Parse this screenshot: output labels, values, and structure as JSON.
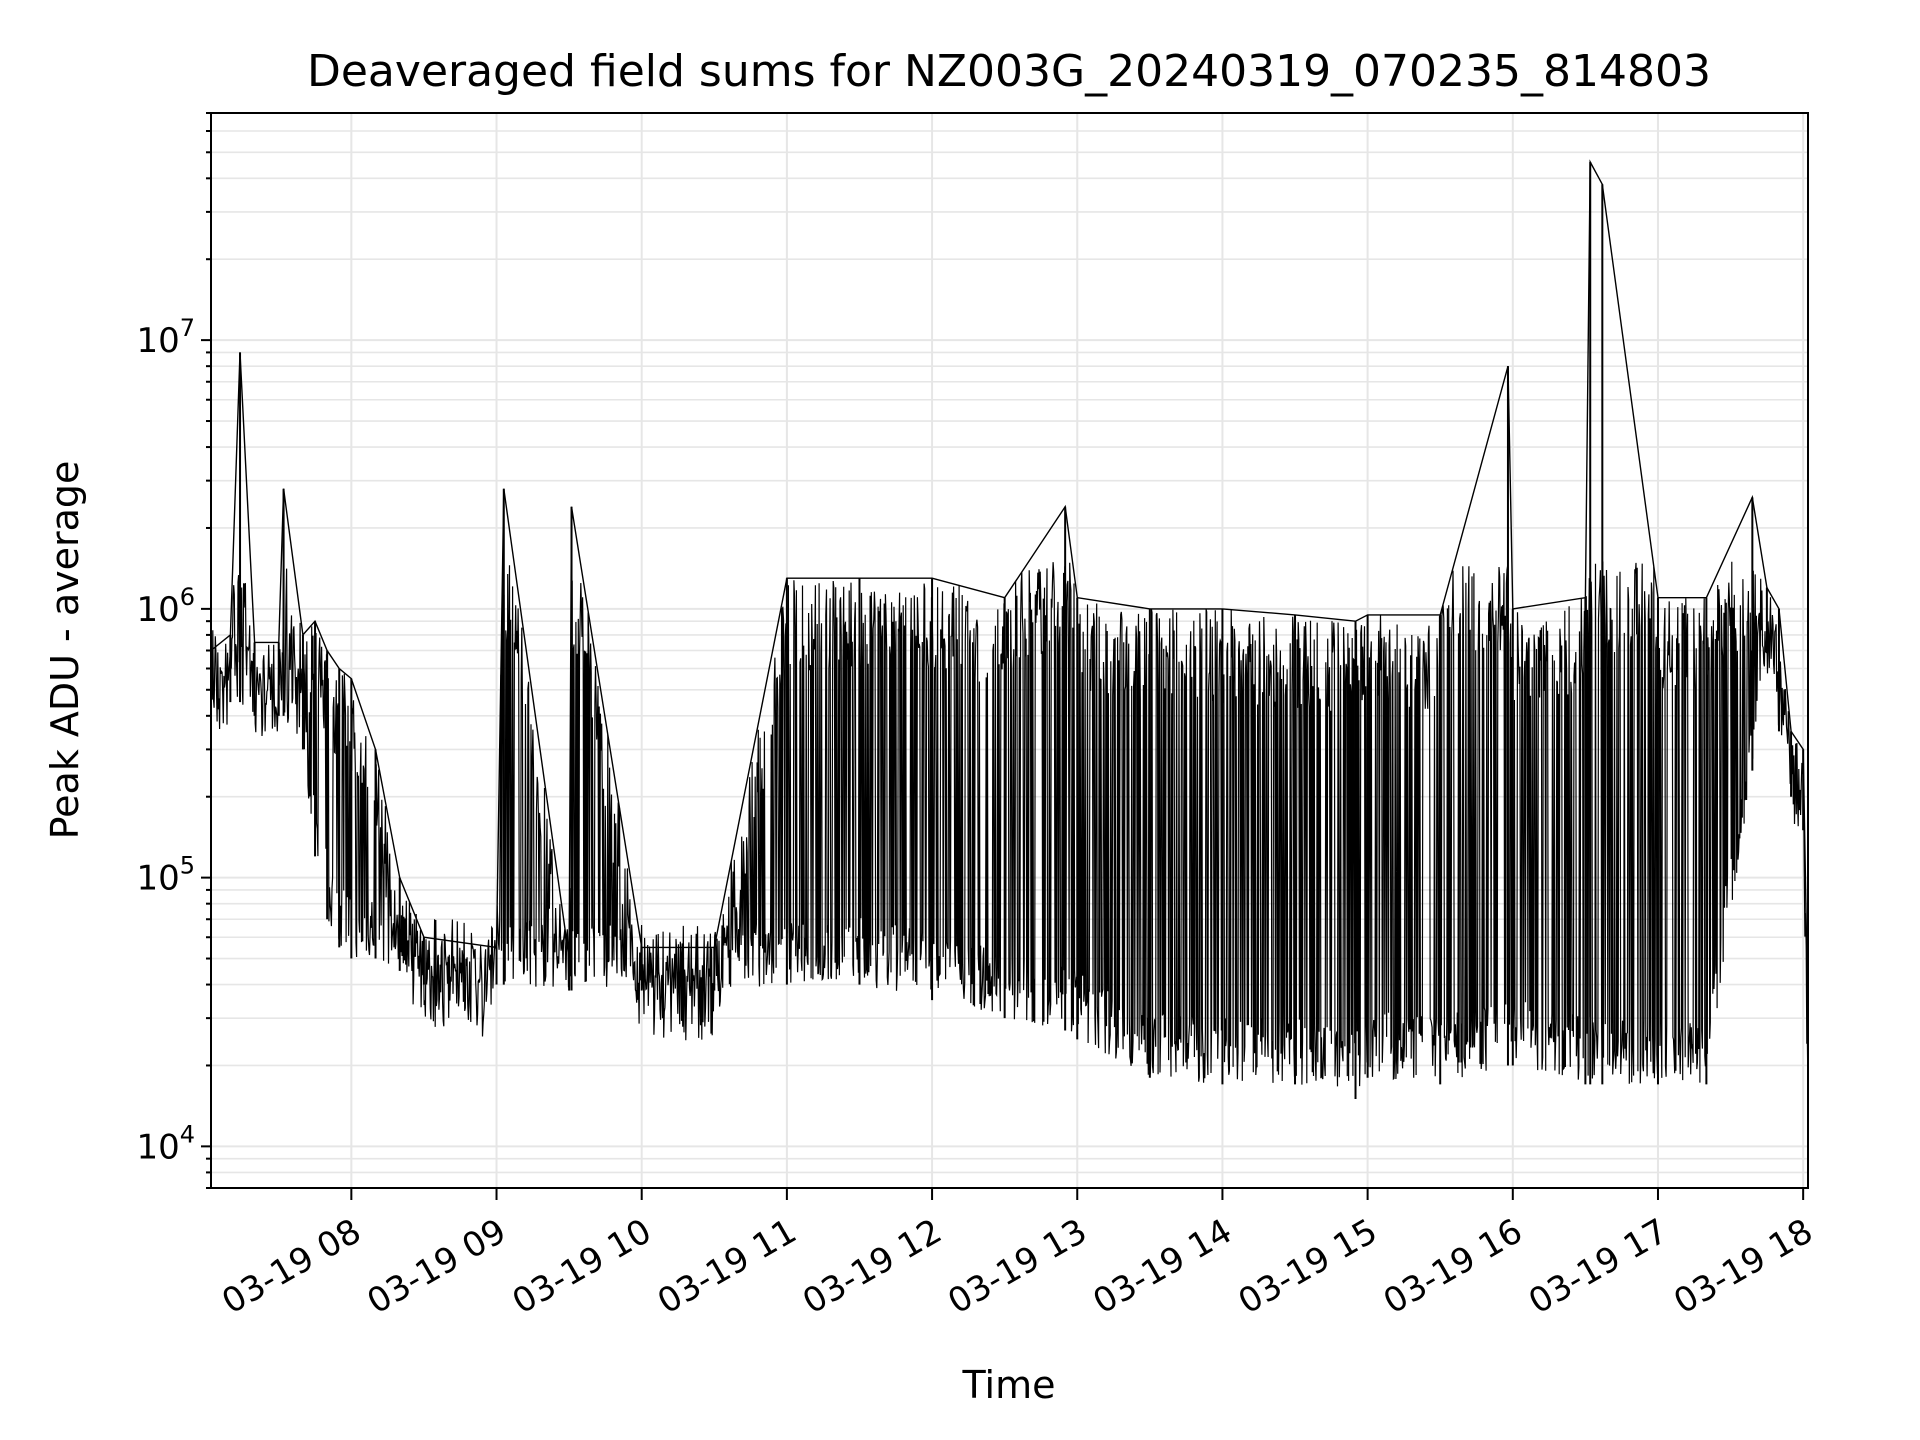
{
  "chart_data": {
    "type": "line",
    "title": "Deaveraged field sums for NZ003G_20240319_070235_814803",
    "xlabel": "Time",
    "ylabel": "Peak ADU - average",
    "yscale": "log",
    "ylim": [
      7000,
      70000000
    ],
    "xlim": [
      "2024-03-19 07:02",
      "2024-03-19 18:02"
    ],
    "grid": true,
    "x_ticks": [
      "03-19 08",
      "03-19 09",
      "03-19 10",
      "03-19 11",
      "03-19 12",
      "03-19 13",
      "03-19 14",
      "03-19 15",
      "03-19 16",
      "03-19 17",
      "03-19 18"
    ],
    "y_ticks": [
      {
        "base": "10",
        "exp": "4",
        "value": 10000
      },
      {
        "base": "10",
        "exp": "5",
        "value": 100000
      },
      {
        "base": "10",
        "exp": "6",
        "value": 1000000
      },
      {
        "base": "10",
        "exp": "7",
        "value": 10000000
      }
    ],
    "line_color": "#000000",
    "series": [
      {
        "x": [
          "2024-03-19 07:02",
          "2024-03-19 07:10",
          "2024-03-19 07:14",
          "2024-03-19 07:20",
          "2024-03-19 07:30",
          "2024-03-19 07:32",
          "2024-03-19 07:40",
          "2024-03-19 07:45",
          "2024-03-19 07:50",
          "2024-03-19 07:55",
          "2024-03-19 08:00",
          "2024-03-19 08:10",
          "2024-03-19 08:20",
          "2024-03-19 08:30",
          "2024-03-19 09:00",
          "2024-03-19 09:03",
          "2024-03-19 09:30",
          "2024-03-19 09:31",
          "2024-03-19 10:00",
          "2024-03-19 10:30",
          "2024-03-19 11:00",
          "2024-03-19 11:30",
          "2024-03-19 12:00",
          "2024-03-19 12:30",
          "2024-03-19 12:55",
          "2024-03-19 13:00",
          "2024-03-19 13:30",
          "2024-03-19 14:00",
          "2024-03-19 14:30",
          "2024-03-19 14:55",
          "2024-03-19 15:00",
          "2024-03-19 15:30",
          "2024-03-19 15:58",
          "2024-03-19 16:00",
          "2024-03-19 16:30",
          "2024-03-19 16:32",
          "2024-03-19 16:37",
          "2024-03-19 17:00",
          "2024-03-19 17:20",
          "2024-03-19 17:39",
          "2024-03-19 17:45",
          "2024-03-19 17:50",
          "2024-03-19 17:55",
          "2024-03-19 18:00",
          "2024-03-19 18:02"
        ],
        "values": [
          700000,
          800000,
          9000000,
          750000,
          750000,
          2800000,
          800000,
          900000,
          700000,
          600000,
          550000,
          300000,
          100000,
          60000,
          55000,
          2800000,
          50000,
          2400000,
          55000,
          55000,
          1300000,
          1300000,
          1300000,
          1100000,
          2400000,
          1100000,
          1000000,
          1000000,
          950000,
          900000,
          950000,
          950000,
          8000000,
          1000000,
          1100000,
          46000000,
          38000000,
          1100000,
          1100000,
          2600000,
          1200000,
          1000000,
          350000,
          300000,
          28000
        ],
        "lower": [
          550000,
          450000,
          450000,
          400000,
          400000,
          400000,
          300000,
          120000,
          70000,
          55000,
          50000,
          50000,
          45000,
          40000,
          40000,
          40000,
          38000,
          38000,
          38000,
          38000,
          40000,
          40000,
          35000,
          30000,
          27000,
          25000,
          18000,
          17000,
          17000,
          15000,
          18000,
          17000,
          20000,
          20000,
          17000,
          17000,
          17000,
          17000,
          17000,
          250000,
          700000,
          350000,
          200000,
          150000,
          28000
        ]
      }
    ]
  }
}
